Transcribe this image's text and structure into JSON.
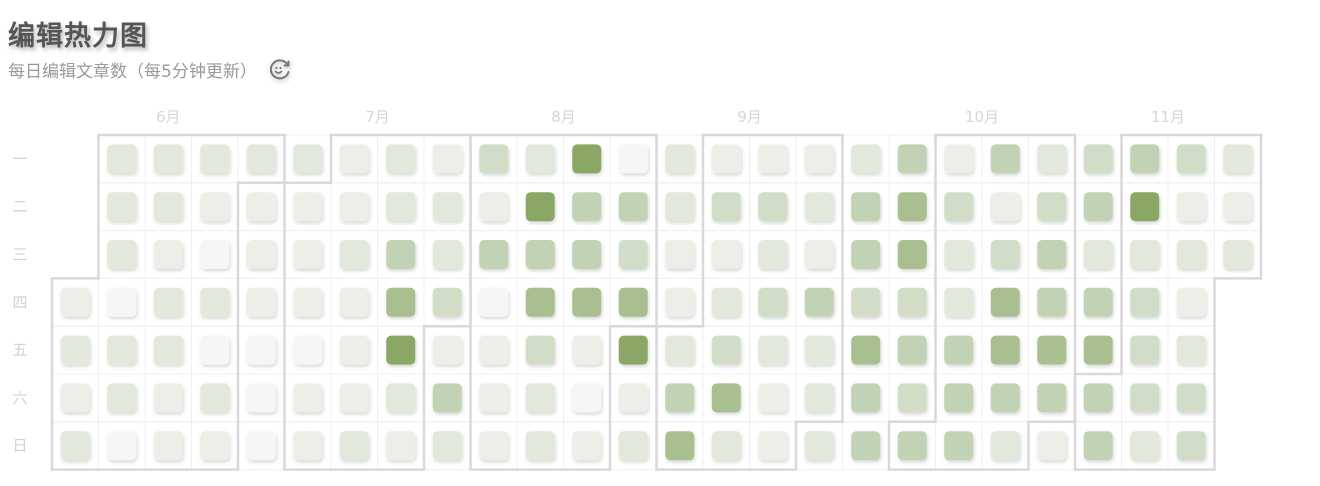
{
  "header": {
    "title": "编辑热力图",
    "subtitle": "每日编辑文章数（每5分钟更新）",
    "refresh_icon": "refresh-icon"
  },
  "colors": {
    "level_colors": [
      "#f6f6f4",
      "#ecefe8",
      "#e2e8dc",
      "#d2ddc7",
      "#c2d2b4",
      "#a9bf90",
      "#8aa766"
    ],
    "grid": "#f0f0f0",
    "month_border": "#d9d9d9"
  },
  "chart_data": {
    "type": "heatmap",
    "title": "编辑热力图",
    "days": [
      "一",
      "二",
      "三",
      "四",
      "五",
      "六",
      "日"
    ],
    "months": [
      {
        "label": "6月",
        "start_week": 0
      },
      {
        "label": "7月",
        "start_week": 5
      },
      {
        "label": "8月",
        "start_week": 9
      },
      {
        "label": "9月",
        "start_week": 13
      },
      {
        "label": "10月",
        "start_week": 18
      },
      {
        "label": "11月",
        "start_week": 22
      }
    ],
    "first_day_row": 3,
    "weeks": [
      [
        null,
        null,
        null,
        1,
        2,
        1,
        2
      ],
      [
        2,
        2,
        2,
        0,
        2,
        2,
        0
      ],
      [
        2,
        2,
        1,
        2,
        2,
        1,
        1
      ],
      [
        2,
        1,
        0,
        2,
        0,
        2,
        1
      ],
      [
        2,
        1,
        1,
        1,
        0,
        0,
        0
      ],
      [
        2,
        1,
        1,
        1,
        0,
        1,
        1
      ],
      [
        1,
        1,
        2,
        1,
        1,
        1,
        2
      ],
      [
        2,
        2,
        4,
        5,
        6,
        2,
        1
      ],
      [
        1,
        2,
        2,
        3,
        1,
        4,
        2
      ],
      [
        3,
        1,
        4,
        0,
        1,
        1,
        1
      ],
      [
        2,
        6,
        4,
        5,
        3,
        2,
        2
      ],
      [
        6,
        4,
        4,
        5,
        1,
        0,
        1
      ],
      [
        0,
        4,
        3,
        5,
        6,
        1,
        2
      ],
      [
        2,
        2,
        1,
        1,
        2,
        4,
        5
      ],
      [
        1,
        3,
        1,
        2,
        3,
        5,
        2
      ],
      [
        1,
        3,
        2,
        3,
        2,
        1,
        1
      ],
      [
        1,
        2,
        1,
        4,
        2,
        2,
        2
      ],
      [
        2,
        4,
        4,
        3,
        5,
        4,
        4
      ],
      [
        4,
        5,
        5,
        3,
        4,
        3,
        4
      ],
      [
        1,
        3,
        2,
        2,
        4,
        4,
        4
      ],
      [
        4,
        1,
        3,
        5,
        5,
        4,
        2
      ],
      [
        2,
        3,
        4,
        4,
        5,
        4,
        1
      ],
      [
        3,
        4,
        2,
        4,
        5,
        4,
        4
      ],
      [
        4,
        6,
        2,
        3,
        3,
        3,
        2
      ],
      [
        3,
        1,
        2,
        1,
        2,
        3,
        3
      ],
      [
        2,
        1,
        2,
        null,
        null,
        null,
        null
      ]
    ],
    "grid": true
  }
}
